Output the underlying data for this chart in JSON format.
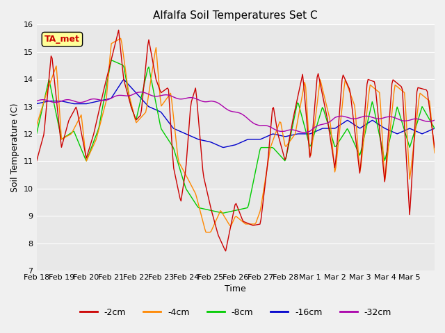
{
  "title": "Alfalfa Soil Temperatures Set C",
  "xlabel": "Time",
  "ylabel": "Soil Temperature (C)",
  "ylim": [
    7.0,
    16.0
  ],
  "yticks": [
    7.0,
    8.0,
    9.0,
    10.0,
    11.0,
    12.0,
    13.0,
    14.0,
    15.0,
    16.0
  ],
  "colors": {
    "-2cm": "#cc0000",
    "-4cm": "#ff8800",
    "-8cm": "#00cc00",
    "-16cm": "#0000cc",
    "-32cm": "#aa00aa"
  },
  "legend_labels": [
    "-2cm",
    "-4cm",
    "-8cm",
    "-16cm",
    "-32cm"
  ],
  "ta_met_label": "TA_met",
  "background_color": "#f0f0f0",
  "plot_bg_color": "#e8e8e8",
  "x_tick_labels": [
    "Feb 18",
    "Feb 19",
    "Feb 20",
    "Feb 21",
    "Feb 22",
    "Feb 23",
    "Feb 24",
    "Feb 25",
    "Feb 26",
    "Feb 27",
    "Feb 28",
    "Mar 1",
    "Mar 2",
    "Mar 3",
    "Mar 4",
    "Mar 5"
  ],
  "x_tick_positions": [
    0,
    1,
    2,
    3,
    4,
    5,
    6,
    7,
    8,
    9,
    10,
    11,
    12,
    13,
    14,
    15
  ]
}
